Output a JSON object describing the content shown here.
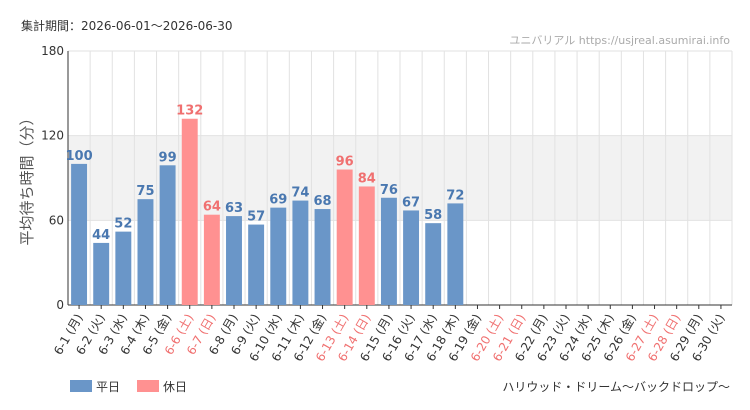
{
  "header": {
    "period": "集計期間：2026-06-01〜2026-06-30",
    "site": "ユニバリアル https://usjreal.asumirai.info"
  },
  "footer": {
    "attraction": "ハリウッド・ドリーム〜バックドロップ〜"
  },
  "colors": {
    "weekday": "#6a96c8",
    "holiday": "#ff9191",
    "weekday_label": "#4a78b0",
    "holiday_label": "#f07070",
    "band": "#f2f2f2",
    "grid": "#e2e2e2"
  },
  "chart_data": {
    "type": "bar",
    "title": "",
    "ylabel": "平均待ち時間（分）",
    "xlabel": "",
    "ylim": [
      0,
      180
    ],
    "yticks": [
      0,
      60,
      120,
      180
    ],
    "band": [
      60,
      120
    ],
    "legend": {
      "placement": "bottom-left",
      "entries": [
        "平日",
        "休日"
      ]
    },
    "categories": [
      "6-1 (月)",
      "6-2 (火)",
      "6-3 (水)",
      "6-4 (木)",
      "6-5 (金)",
      "6-6 (土)",
      "6-7 (日)",
      "6-8 (月)",
      "6-9 (火)",
      "6-10 (水)",
      "6-11 (木)",
      "6-12 (金)",
      "6-13 (土)",
      "6-14 (日)",
      "6-15 (月)",
      "6-16 (火)",
      "6-17 (水)",
      "6-18 (木)",
      "6-19 (金)",
      "6-20 (土)",
      "6-21 (日)",
      "6-22 (月)",
      "6-23 (火)",
      "6-24 (水)",
      "6-25 (木)",
      "6-26 (金)",
      "6-27 (土)",
      "6-28 (日)",
      "6-29 (月)",
      "6-30 (火)"
    ],
    "holiday": [
      false,
      false,
      false,
      false,
      false,
      true,
      true,
      false,
      false,
      false,
      false,
      false,
      true,
      true,
      false,
      false,
      false,
      false,
      false,
      true,
      true,
      false,
      false,
      false,
      false,
      false,
      true,
      true,
      false,
      false
    ],
    "values": [
      100,
      44,
      52,
      75,
      99,
      132,
      64,
      63,
      57,
      69,
      74,
      68,
      96,
      84,
      76,
      67,
      58,
      72,
      null,
      null,
      null,
      null,
      null,
      null,
      null,
      null,
      null,
      null,
      null,
      null
    ]
  }
}
